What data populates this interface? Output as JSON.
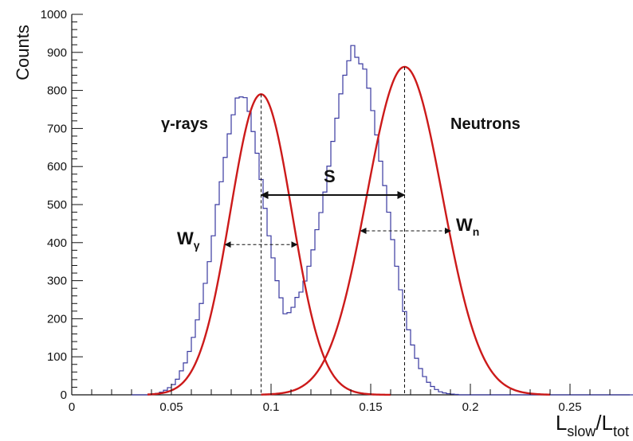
{
  "chart_data": {
    "type": "line",
    "title": "",
    "xlabel": "L_slow/L_tot",
    "xlabel_parts": {
      "main1": "L",
      "sub1": "slow",
      "main2": "/L",
      "sub2": "tot"
    },
    "ylabel": "Counts",
    "xlim": [
      0,
      0.28
    ],
    "ylim": [
      0,
      1000
    ],
    "x_ticks": [
      0,
      0.05,
      0.1,
      0.15,
      0.2,
      0.25
    ],
    "x_tick_labels": [
      "0",
      "0.05",
      "0.1",
      "0.15",
      "0.2",
      "0.25"
    ],
    "y_ticks": [
      0,
      100,
      200,
      300,
      400,
      500,
      600,
      700,
      800,
      900,
      1000
    ],
    "y_tick_labels": [
      "0",
      "100",
      "200",
      "300",
      "400",
      "500",
      "600",
      "700",
      "800",
      "900",
      "1000"
    ],
    "grid": false,
    "legend": "none",
    "series": [
      {
        "kind": "histogram",
        "color": "#3a3aa0",
        "bin_width": 0.002,
        "bin_start": 0.03,
        "values": [
          0,
          0,
          0,
          0,
          0,
          2,
          4,
          7,
          12,
          19,
          27,
          41,
          63,
          84,
          114,
          151,
          197,
          240,
          293,
          350,
          418,
          500,
          560,
          624,
          686,
          736,
          780,
          783,
          781,
          745,
          692,
          635,
          566,
          490,
          418,
          360,
          300,
          255,
          213,
          216,
          230,
          256,
          270,
          299,
          338,
          381,
          434,
          479,
          533,
          601,
          666,
          727,
          791,
          840,
          878,
          918,
          887,
          870,
          856,
          806,
          747,
          683,
          614,
          550,
          480,
          408,
          338,
          276,
          219,
          171,
          131,
          96,
          69,
          48,
          33,
          22,
          14,
          8,
          5,
          3,
          2,
          1,
          0,
          0,
          0,
          0,
          0,
          0,
          0,
          0,
          0,
          0,
          0,
          0,
          0,
          0,
          0,
          0,
          0,
          0,
          0,
          0,
          0,
          0,
          0,
          0,
          0,
          0,
          0,
          0,
          0,
          0,
          0,
          0,
          0,
          0,
          0,
          0,
          0,
          0,
          0,
          0,
          0,
          0,
          0,
          0
        ]
      },
      {
        "kind": "gaussian-fit",
        "label": "γ-rays",
        "color": "#cc1a1a",
        "amplitude": 790,
        "mean": 0.095,
        "sigma": 0.0155,
        "x_range": [
          0.038,
          0.16
        ]
      },
      {
        "kind": "gaussian-fit",
        "label": "Neutrons",
        "color": "#cc1a1a",
        "amplitude": 862,
        "mean": 0.167,
        "sigma": 0.019,
        "x_range": [
          0.095,
          0.24
        ]
      }
    ],
    "annotations": {
      "gamma_label": "γ-rays",
      "neutron_label": "Neutrons",
      "separation_label": "S",
      "w_gamma": {
        "main": "W",
        "sub": "γ"
      },
      "w_n": {
        "main": "W",
        "sub": "n"
      },
      "separation_arrow": {
        "x1": 0.095,
        "x2": 0.167,
        "y": 525
      },
      "w_gamma_arrow": {
        "x1": 0.077,
        "x2": 0.113,
        "y": 395
      },
      "w_n_arrow": {
        "x1": 0.145,
        "x2": 0.19,
        "y": 431
      },
      "peak_markers": [
        0.095,
        0.167
      ]
    }
  }
}
